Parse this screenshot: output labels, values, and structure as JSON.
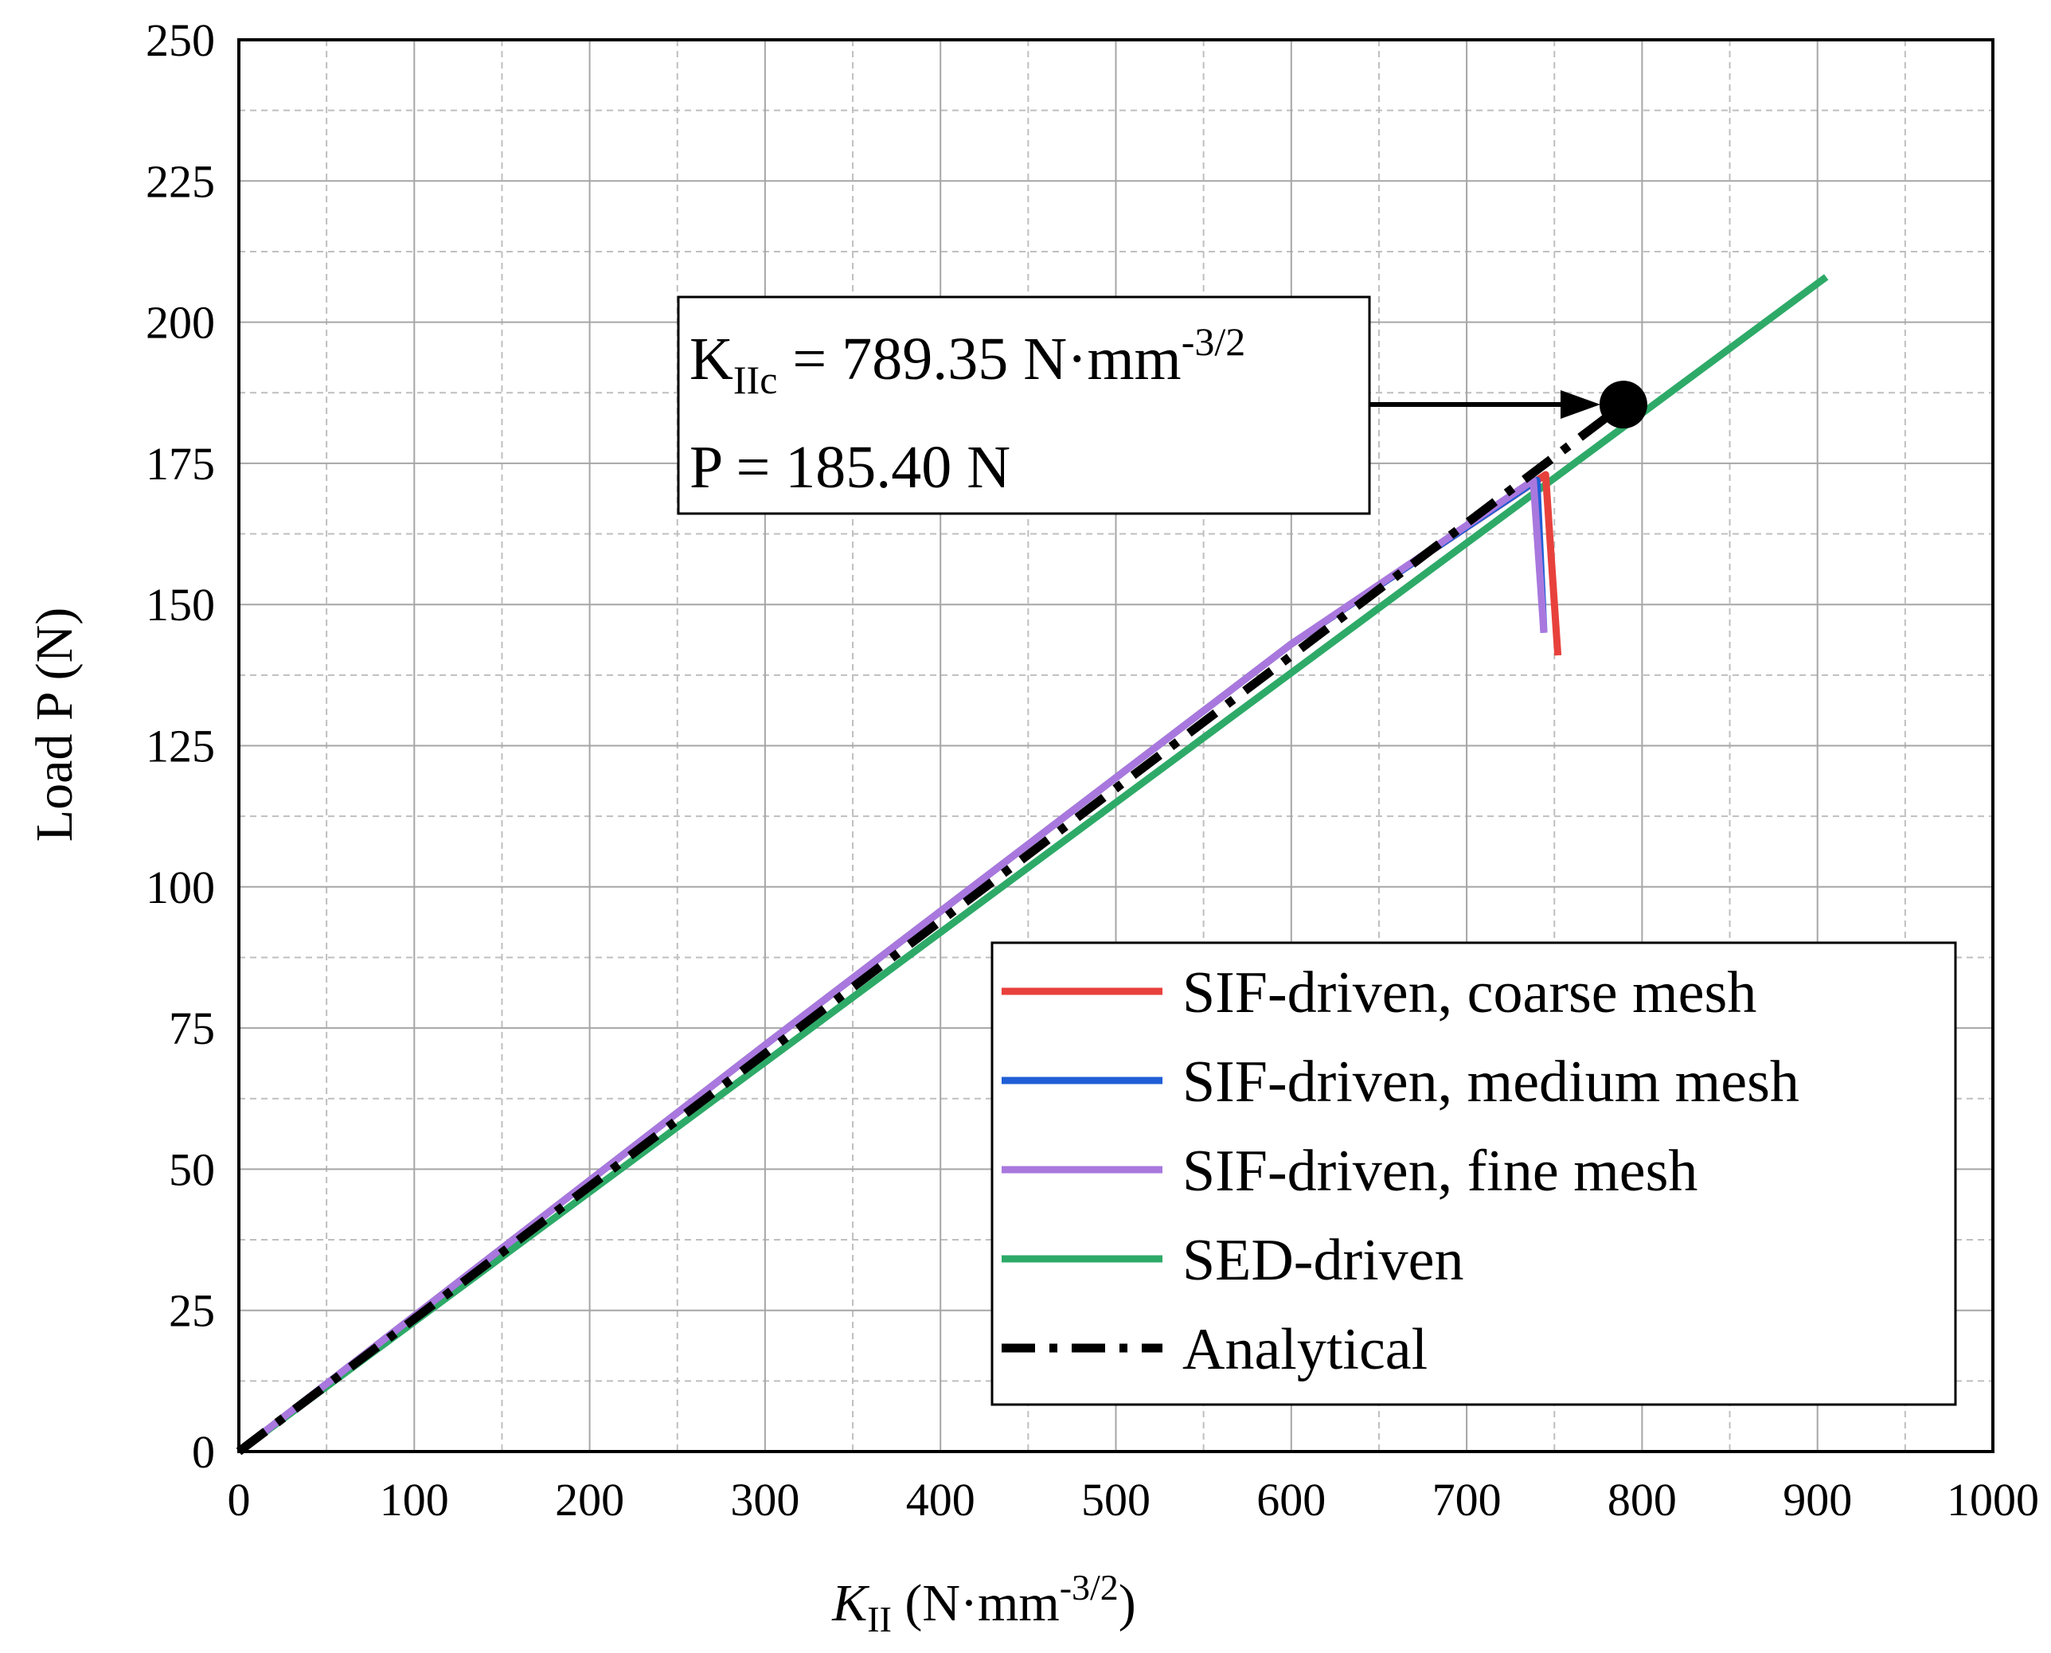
{
  "chart_data": {
    "type": "line",
    "xlabel": {
      "main": "K",
      "sub": "II",
      "units": " (N·mm",
      "sup": "-3/2",
      "close": ")"
    },
    "ylabel": "Load P (N)",
    "xlim": [
      0,
      1000
    ],
    "ylim": [
      0,
      250
    ],
    "xticks": [
      0,
      100,
      200,
      300,
      400,
      500,
      600,
      700,
      800,
      900,
      1000
    ],
    "yticks": [
      0,
      25,
      50,
      75,
      100,
      125,
      150,
      175,
      200,
      225,
      250
    ],
    "grid": true,
    "legend_position": "bottom-right",
    "series": [
      {
        "name": "SIF-driven, coarse mesh",
        "color": "#e8413c",
        "style": "solid",
        "x": [
          0,
          300,
          600,
          745,
          752
        ],
        "y": [
          0,
          72,
          143,
          173,
          141
        ]
      },
      {
        "name": "SIF-driven, medium mesh",
        "color": "#1f5fd6",
        "style": "solid",
        "x": [
          0,
          300,
          600,
          740,
          744
        ],
        "y": [
          0,
          72,
          143,
          172,
          145
        ]
      },
      {
        "name": "SIF-driven, fine mesh",
        "color": "#a978de",
        "style": "solid",
        "x": [
          0,
          300,
          600,
          738,
          744
        ],
        "y": [
          0,
          72,
          143,
          172,
          145
        ]
      },
      {
        "name": "SED-driven",
        "color": "#2eaa68",
        "style": "solid",
        "x": [
          0,
          905
        ],
        "y": [
          0,
          208
        ]
      },
      {
        "name": "Analytical",
        "color": "#000000",
        "style": "dashdot",
        "x": [
          0,
          789.35
        ],
        "y": [
          0,
          185.4
        ]
      }
    ],
    "annotation": {
      "line1_main": "K",
      "line1_sub": "IIc",
      "line1_rest": " = 789.35 N·mm",
      "line1_sup": "-3/2",
      "line2": "P = 185.40 N",
      "point": {
        "x": 789.35,
        "y": 185.4
      }
    }
  }
}
